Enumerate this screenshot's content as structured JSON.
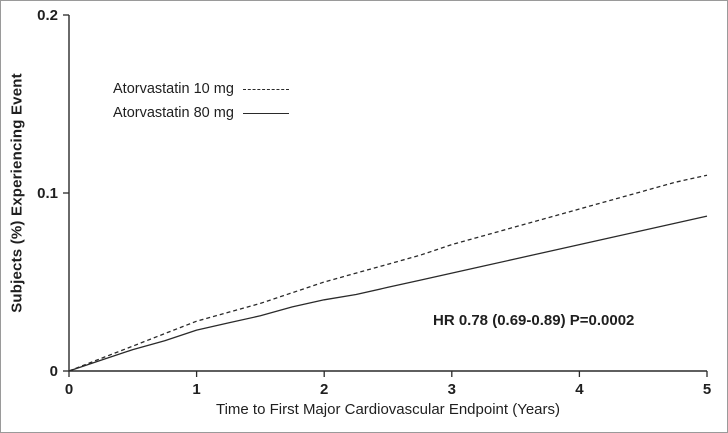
{
  "chart_data": {
    "type": "line",
    "title": "",
    "xlabel": "Time to First Major Cardiovascular Endpoint (Years)",
    "ylabel": "Subjects (%) Experiencing Event",
    "xlim": [
      0,
      5
    ],
    "ylim": [
      0,
      0.2
    ],
    "xticks": [
      0,
      1,
      2,
      3,
      4,
      5
    ],
    "xtick_labels": [
      "0",
      "1",
      "2",
      "3",
      "4",
      "5"
    ],
    "yticks": [
      0,
      0.1,
      0.2
    ],
    "ytick_labels": [
      "0",
      "0.1",
      "0.2"
    ],
    "grid": false,
    "legend_position": "upper-left-inside",
    "annotation": "HR 0.78 (0.69-0.89)  P=0.0002",
    "line_color": "#2a2a2a",
    "x": [
      0,
      0.25,
      0.5,
      0.75,
      1,
      1.25,
      1.5,
      1.75,
      2,
      2.25,
      2.5,
      2.75,
      3,
      3.25,
      3.5,
      3.75,
      4,
      4.25,
      4.5,
      4.75,
      5
    ],
    "series": [
      {
        "name": "Atorvastatin 10 mg",
        "style": "dashed",
        "values": [
          0,
          0.007,
          0.014,
          0.021,
          0.028,
          0.033,
          0.038,
          0.044,
          0.05,
          0.055,
          0.06,
          0.065,
          0.071,
          0.076,
          0.081,
          0.086,
          0.091,
          0.096,
          0.101,
          0.106,
          0.11
        ]
      },
      {
        "name": "Atorvastatin 80 mg",
        "style": "solid",
        "values": [
          0,
          0.006,
          0.012,
          0.017,
          0.023,
          0.027,
          0.031,
          0.036,
          0.04,
          0.043,
          0.047,
          0.051,
          0.055,
          0.059,
          0.063,
          0.067,
          0.071,
          0.075,
          0.079,
          0.083,
          0.087
        ]
      }
    ]
  }
}
